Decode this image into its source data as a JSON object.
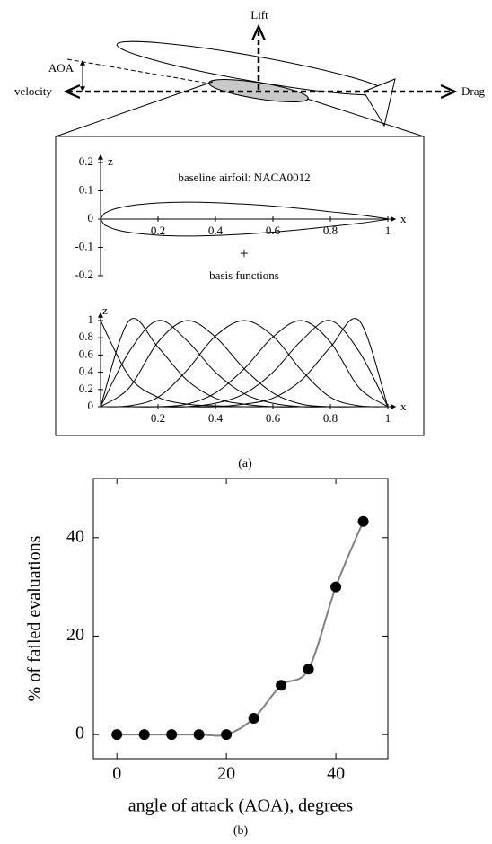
{
  "diagram": {
    "lift": "Lift",
    "aoa": "AOA",
    "velocity": "velocity",
    "drag": "Drag",
    "plus": "+",
    "caption": "(a)"
  },
  "chart_data": [
    {
      "type": "line",
      "annotation": "baseline airfoil: NACA0012",
      "xlabel": "x",
      "ylabel": "z",
      "x": [
        0,
        0.0125,
        0.025,
        0.05,
        0.1,
        0.2,
        0.3,
        0.4,
        0.5,
        0.6,
        0.7,
        0.8,
        0.9,
        1
      ],
      "series": [
        {
          "color": "#000000",
          "values": [
            0,
            0.019,
            0.026,
            0.036,
            0.047,
            0.057,
            0.06,
            0.058,
            0.053,
            0.046,
            0.037,
            0.026,
            0.015,
            0.001
          ]
        },
        {
          "color": "#000000",
          "values": [
            0,
            -0.019,
            -0.026,
            -0.036,
            -0.047,
            -0.057,
            -0.06,
            -0.058,
            -0.053,
            -0.046,
            -0.037,
            -0.026,
            -0.015,
            -0.001
          ]
        }
      ],
      "xlim": [
        0,
        1
      ],
      "ylim": [
        -0.2,
        0.2
      ],
      "xticks": [
        0.2,
        0.4,
        0.6,
        0.8,
        1
      ],
      "yticks": [
        -0.2,
        -0.1,
        0,
        0.1,
        0.2
      ]
    },
    {
      "type": "line",
      "title": "basis functions",
      "xlabel": "x",
      "ylabel": "z",
      "x": [
        0,
        0.1,
        0.2,
        0.3,
        0.4,
        0.5,
        0.6,
        0.7,
        0.8,
        0.9,
        1
      ],
      "series": [
        {
          "color": "#000000",
          "values": [
            1,
            0.35,
            0.11,
            0.03,
            0.01,
            0,
            0,
            0,
            0,
            0,
            0
          ]
        },
        {
          "color": "#000000",
          "values": [
            0,
            1,
            0.69,
            0.31,
            0.1,
            0.03,
            0,
            0,
            0,
            0,
            0
          ]
        },
        {
          "color": "#000000",
          "values": [
            0,
            0.64,
            1,
            0.77,
            0.4,
            0.15,
            0.04,
            0,
            0,
            0,
            0
          ]
        },
        {
          "color": "#000000",
          "values": [
            0,
            0.22,
            0.75,
            1,
            0.81,
            0.44,
            0.16,
            0.03,
            0,
            0,
            0
          ]
        },
        {
          "color": "#000000",
          "values": [
            0,
            0.01,
            0.11,
            0.42,
            0.82,
            1,
            0.82,
            0.42,
            0.11,
            0.01,
            0
          ]
        },
        {
          "color": "#000000",
          "values": [
            0,
            0,
            0,
            0.03,
            0.16,
            0.44,
            0.81,
            1,
            0.75,
            0.22,
            0
          ]
        },
        {
          "color": "#000000",
          "values": [
            0,
            0,
            0,
            0,
            0.04,
            0.15,
            0.4,
            0.77,
            1,
            0.64,
            0
          ]
        },
        {
          "color": "#000000",
          "values": [
            0,
            0,
            0,
            0,
            0,
            0.03,
            0.1,
            0.31,
            0.69,
            1,
            0
          ]
        }
      ],
      "xlim": [
        0,
        1
      ],
      "ylim": [
        0,
        1
      ],
      "xticks": [
        0.2,
        0.4,
        0.6,
        0.8,
        1
      ],
      "yticks": [
        0,
        0.2,
        0.4,
        0.6,
        0.8,
        1
      ]
    },
    {
      "type": "line",
      "markers": true,
      "caption": "(b)",
      "xlabel": "angle of attack (AOA), degrees",
      "ylabel": "% of failed evaluations",
      "x": [
        0,
        5,
        10,
        15,
        20,
        25,
        30,
        35,
        40,
        45
      ],
      "series": [
        {
          "color": "#808080",
          "marker_color": "#000000",
          "values": [
            0,
            0,
            0,
            0,
            0,
            3.3,
            10,
            13.3,
            30,
            43.3
          ]
        }
      ],
      "xlim": [
        -4.3,
        49.5
      ],
      "ylim": [
        -4.9,
        52
      ],
      "xticks": [
        0,
        20,
        40
      ],
      "yticks": [
        0,
        20,
        40
      ]
    }
  ]
}
